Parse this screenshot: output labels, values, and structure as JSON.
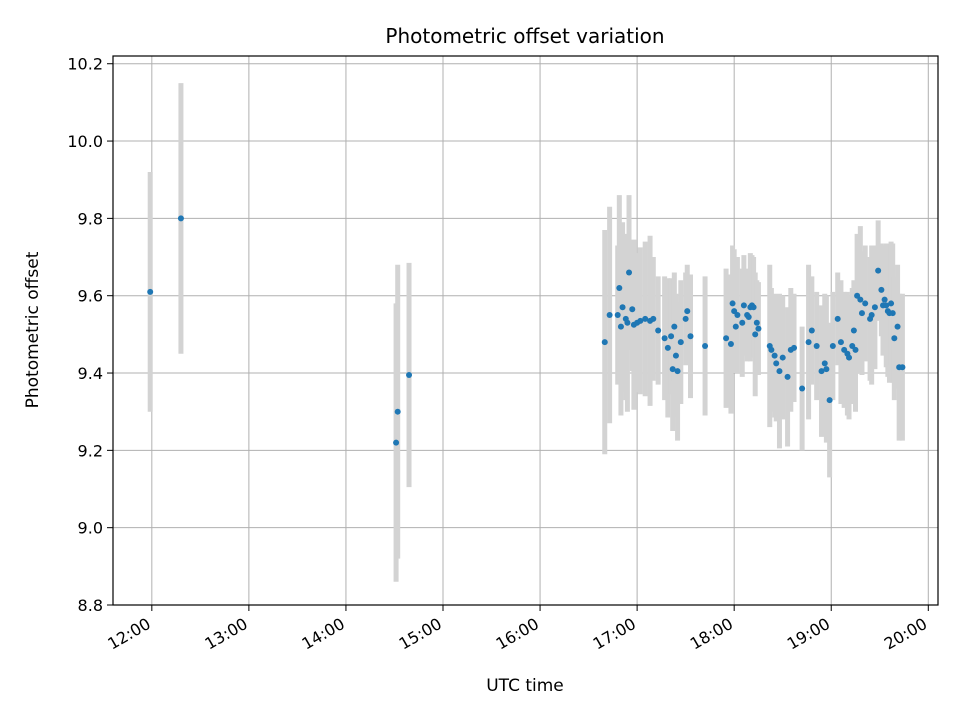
{
  "chart_data": {
    "type": "scatter",
    "title": "Photometric offset variation",
    "xlabel": "UTC time",
    "ylabel": "Photometric offset",
    "xlim": [
      "11:36",
      "20:06"
    ],
    "ylim": [
      8.8,
      10.22
    ],
    "x_ticks": [
      "12:00",
      "13:00",
      "14:00",
      "15:00",
      "16:00",
      "17:00",
      "18:00",
      "19:00",
      "20:00"
    ],
    "y_ticks": [
      8.8,
      9.0,
      9.2,
      9.4,
      9.6,
      9.8,
      10.0,
      10.2
    ],
    "grid": true,
    "legend": "none",
    "marker_color": "#1f77b4",
    "errorbar_color": "#d3d3d3",
    "series": [
      {
        "x": [
          "11:59",
          "12:18",
          "14:31",
          "14:32",
          "14:39",
          "16:40",
          "16:43",
          "16:48",
          "16:49",
          "16:50",
          "16:51",
          "16:53",
          "16:54",
          "16:55",
          "16:57",
          "16:58",
          "17:00",
          "17:02",
          "17:05",
          "17:08",
          "17:10",
          "17:13",
          "17:17",
          "17:19",
          "17:21",
          "17:22",
          "17:23",
          "17:24",
          "17:25",
          "17:27",
          "17:30",
          "17:31",
          "17:33",
          "17:42",
          "17:55",
          "17:58",
          "17:59",
          "18:00",
          "18:01",
          "18:02",
          "18:05",
          "18:06",
          "18:08",
          "18:09",
          "18:10",
          "18:11",
          "18:12",
          "18:13",
          "18:14",
          "18:15",
          "18:22",
          "18:23",
          "18:25",
          "18:26",
          "18:28",
          "18:30",
          "18:33",
          "18:35",
          "18:37",
          "18:42",
          "18:46",
          "18:48",
          "18:51",
          "18:54",
          "18:56",
          "18:57",
          "18:59",
          "19:01",
          "19:04",
          "19:06",
          "19:08",
          "19:10",
          "19:11",
          "19:13",
          "19:14",
          "19:15",
          "19:16",
          "19:18",
          "19:19",
          "19:21",
          "19:24",
          "19:25",
          "19:27",
          "19:29",
          "19:31",
          "19:32",
          "19:33",
          "19:34",
          "19:35",
          "19:36",
          "19:37",
          "19:38",
          "19:39",
          "19:41",
          "19:42",
          "19:44"
        ],
        "y": [
          9.61,
          9.8,
          9.22,
          9.3,
          9.395,
          9.48,
          9.55,
          9.55,
          9.62,
          9.52,
          9.57,
          9.54,
          9.53,
          9.66,
          9.565,
          9.525,
          9.53,
          9.535,
          9.54,
          9.535,
          9.54,
          9.51,
          9.49,
          9.465,
          9.495,
          9.41,
          9.52,
          9.445,
          9.405,
          9.48,
          9.54,
          9.56,
          9.495,
          9.47,
          9.49,
          9.475,
          9.58,
          9.56,
          9.52,
          9.55,
          9.53,
          9.575,
          9.55,
          9.545,
          9.57,
          9.575,
          9.57,
          9.5,
          9.53,
          9.515,
          9.47,
          9.46,
          9.445,
          9.425,
          9.405,
          9.44,
          9.39,
          9.46,
          9.465,
          9.36,
          9.48,
          9.51,
          9.47,
          9.405,
          9.425,
          9.41,
          9.33,
          9.47,
          9.54,
          9.48,
          9.46,
          9.45,
          9.44,
          9.47,
          9.51,
          9.46,
          9.6,
          9.59,
          9.555,
          9.58,
          9.54,
          9.55,
          9.57,
          9.665,
          9.615,
          9.575,
          9.59,
          9.575,
          9.56,
          9.555,
          9.58,
          9.555,
          9.49,
          9.52,
          9.415,
          9.415
        ],
        "yerr": [
          0.31,
          0.35,
          0.36,
          0.38,
          0.29,
          0.29,
          0.28,
          0.18,
          0.24,
          0.23,
          0.22,
          0.21,
          0.23,
          0.2,
          0.16,
          0.22,
          0.18,
          0.19,
          0.2,
          0.22,
          0.16,
          0.14,
          0.16,
          0.18,
          0.15,
          0.16,
          0.14,
          0.16,
          0.18,
          0.16,
          0.12,
          0.12,
          0.16,
          0.18,
          0.18,
          0.18,
          0.15,
          0.16,
          0.12,
          0.15,
          0.14,
          0.13,
          0.12,
          0.11,
          0.14,
          0.13,
          0.13,
          0.16,
          0.11,
          0.12,
          0.21,
          0.16,
          0.16,
          0.15,
          0.2,
          0.16,
          0.18,
          0.16,
          0.14,
          0.16,
          0.2,
          0.14,
          0.14,
          0.17,
          0.18,
          0.19,
          0.2,
          0.14,
          0.12,
          0.16,
          0.15,
          0.16,
          0.16,
          0.15,
          0.13,
          0.16,
          0.16,
          0.19,
          0.16,
          0.15,
          0.16,
          0.18,
          0.16,
          0.13,
          0.12,
          0.13,
          0.14,
          0.16,
          0.17,
          0.18,
          0.16,
          0.18,
          0.16,
          0.16,
          0.19,
          0.19
        ]
      }
    ]
  }
}
